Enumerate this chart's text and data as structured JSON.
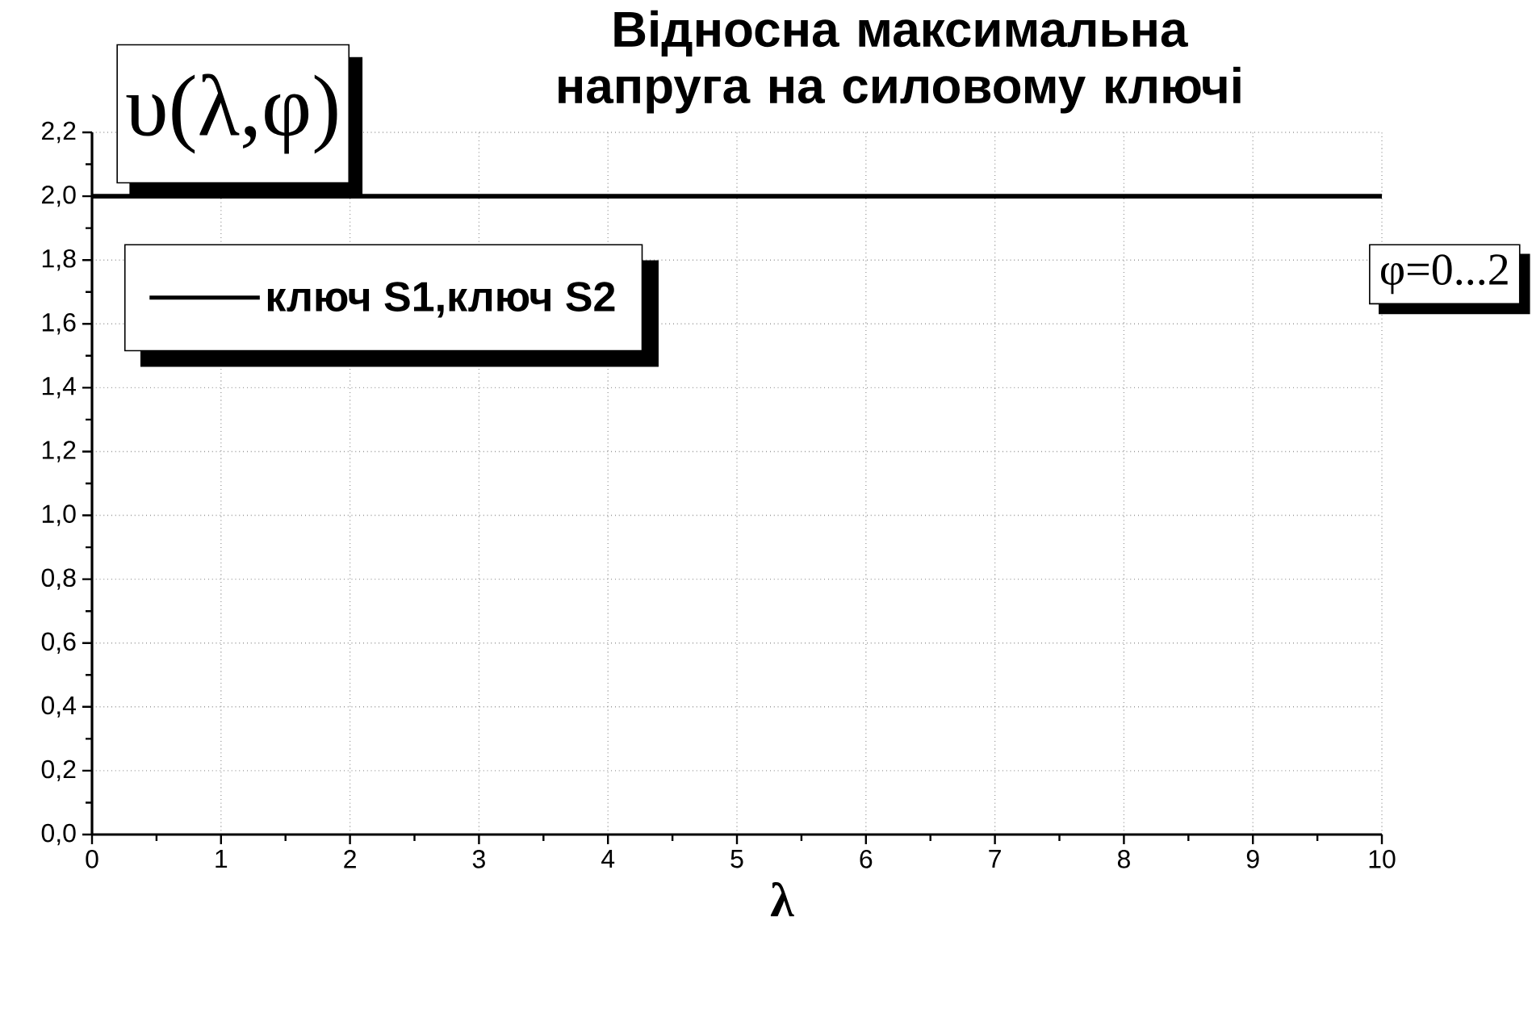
{
  "chart_data": {
    "type": "line",
    "title": "Відносна максимальна напруга на силовому ключі",
    "xlabel": "λ",
    "ylabel": "υ(λ,φ)",
    "x": [
      0,
      10
    ],
    "series": [
      {
        "name": "ключ S1,ключ S2",
        "color": "#000000",
        "values": [
          2,
          2
        ]
      }
    ],
    "xlim": [
      0,
      10
    ],
    "ylim": [
      0,
      2.2
    ],
    "xticks": [
      0,
      1,
      2,
      3,
      4,
      5,
      6,
      7,
      8,
      9,
      10
    ],
    "yticks": [
      {
        "value": 0,
        "label": "0,0"
      },
      {
        "value": 0.2,
        "label": "0,2"
      },
      {
        "value": 0.4,
        "label": "0,4"
      },
      {
        "value": 0.6,
        "label": "0,6"
      },
      {
        "value": 0.8,
        "label": "0,8"
      },
      {
        "value": 1.0,
        "label": "1,0"
      },
      {
        "value": 1.2,
        "label": "1,2"
      },
      {
        "value": 1.4,
        "label": "1,4"
      },
      {
        "value": 1.6,
        "label": "1,6"
      },
      {
        "value": 1.8,
        "label": "1,8"
      },
      {
        "value": 2.0,
        "label": "2,0"
      },
      {
        "value": 2.2,
        "label": "2,2"
      }
    ],
    "grid": true,
    "legend": "top left",
    "marker": "none",
    "line_style": "solid",
    "annotations": [
      "φ=0...2"
    ]
  }
}
